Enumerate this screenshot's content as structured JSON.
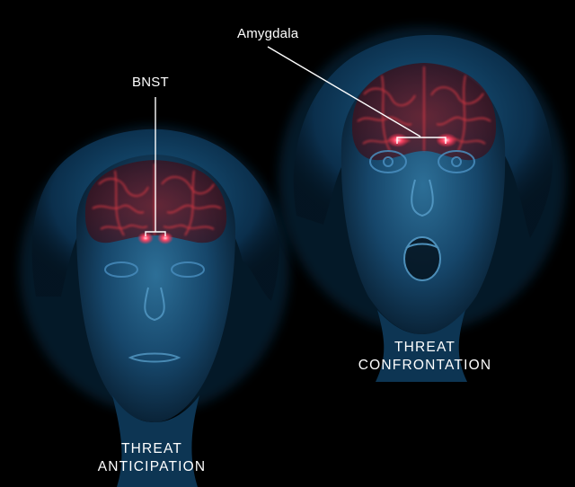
{
  "callouts": {
    "bnst": "BNST",
    "amygdala": "Amygdala"
  },
  "captions": {
    "left_line1": "THREAT",
    "left_line2": "ANTICIPATION",
    "right_line1": "THREAT",
    "right_line2": "CONFRONTATION"
  },
  "colors": {
    "background": "#000000",
    "head_glow": "#1e6a9a",
    "brain": "#c0282c",
    "hotspot": "#ff4a6a",
    "text": "#ffffff"
  }
}
